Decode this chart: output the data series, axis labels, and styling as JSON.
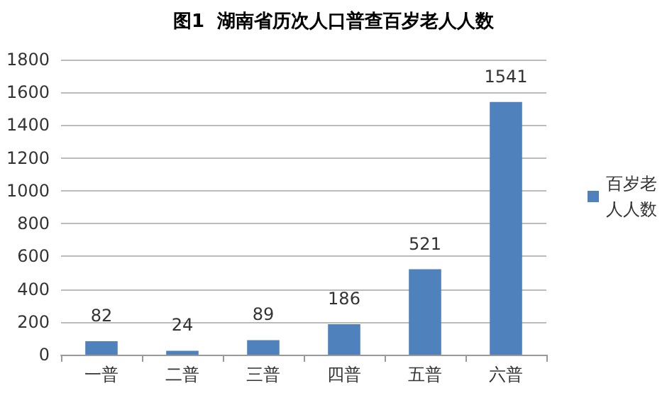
{
  "chart_data": {
    "type": "bar",
    "title": "图1  湖南省历次人口普查百岁老人人数",
    "categories": [
      "一普",
      "二普",
      "三普",
      "四普",
      "五普",
      "六普"
    ],
    "series": [
      {
        "name": "百岁老人人数",
        "color": "#4f81bd",
        "values": [
          82,
          24,
          89,
          186,
          521,
          1541
        ]
      }
    ],
    "ylim": [
      0,
      1800
    ],
    "yticks": [
      0,
      200,
      400,
      600,
      800,
      1000,
      1200,
      1400,
      1600,
      1800
    ],
    "grid": "y",
    "legend": "right",
    "data_labels": true
  }
}
